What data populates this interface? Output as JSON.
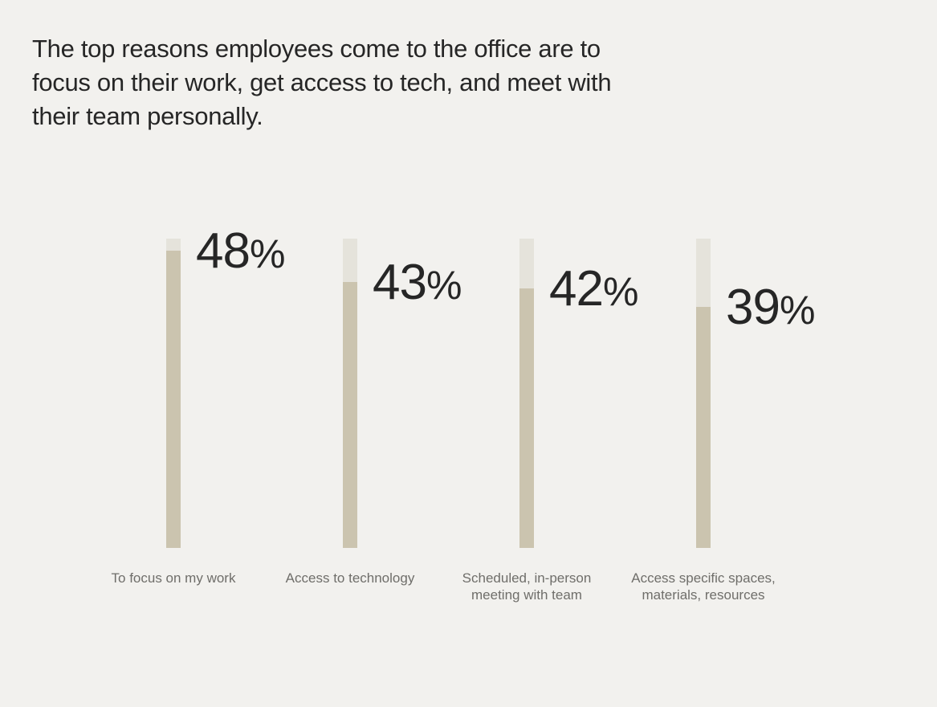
{
  "headline": "The top reasons employees come to the office are to focus on their work, get access to tech, and meet with their team personally.",
  "colors": {
    "background": "#f2f1ee",
    "track": "#e5e3db",
    "fill": "#cbc4af",
    "text": "#262626",
    "label": "#6f6e6a"
  },
  "chart_data": {
    "type": "bar",
    "orientation": "vertical",
    "categories": [
      "To focus on my work",
      "Access to technology",
      "Scheduled, in-person\nmeeting with team",
      "Access specific spaces,\nmaterials, resources"
    ],
    "values": [
      48,
      43,
      42,
      39
    ],
    "value_labels": [
      "48%",
      "43%",
      "42%",
      "39%"
    ],
    "unit": "%",
    "ylim": [
      0,
      50
    ],
    "grid": false,
    "legend": "none",
    "title": "",
    "xlabel": "",
    "ylabel": ""
  }
}
